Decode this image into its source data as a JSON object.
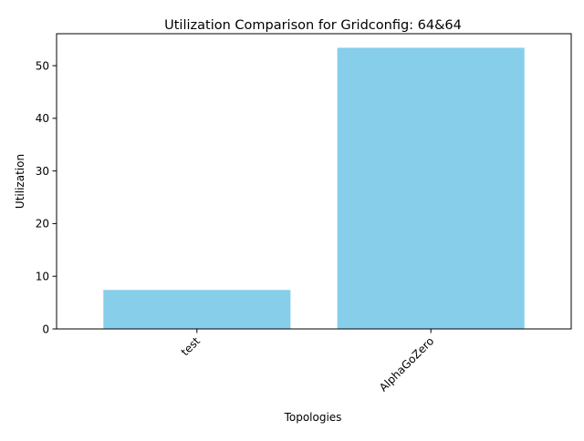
{
  "chart_data": {
    "type": "bar",
    "title": "Utilization Comparison for Gridconfig: 64&64",
    "xlabel": "Topologies",
    "ylabel": "Utilization",
    "categories": [
      "test",
      "AlphaGoZero"
    ],
    "values": [
      7.4,
      53.4
    ],
    "ylim": [
      0,
      56.07
    ],
    "yticks": [
      0,
      10,
      20,
      30,
      40,
      50
    ],
    "bar_color": "#87ceeb",
    "grid": false,
    "legend": "none",
    "xtick_rotation_deg": 45
  }
}
